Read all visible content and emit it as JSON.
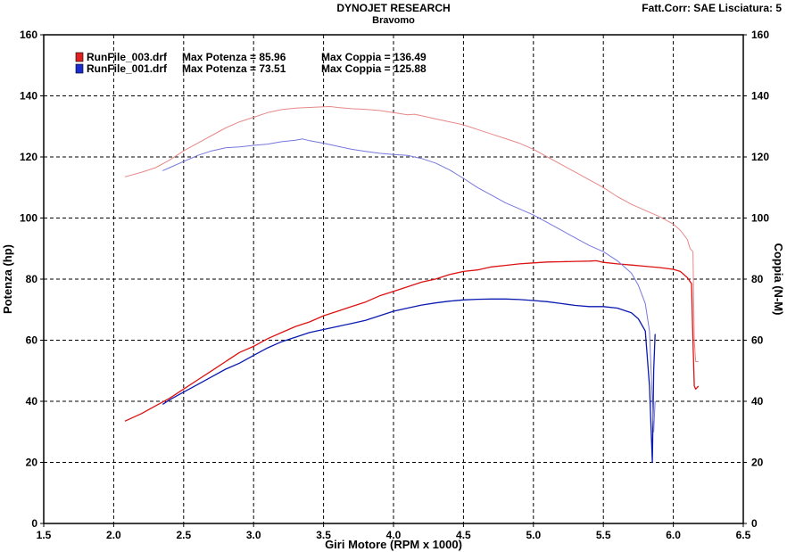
{
  "header": {
    "title": "DYNOJET RESEARCH",
    "subtitle": "Bravomo",
    "correction": "Fatt.Corr: SAE  Lisciatura: 5"
  },
  "chart_data": {
    "type": "line",
    "xlabel": "Giri Motore (RPM x 1000)",
    "ylabel_left": "Potenza (hp)",
    "ylabel_right": "Coppia (N-M)",
    "xlim": [
      1.5,
      6.5
    ],
    "ylim": [
      0,
      160
    ],
    "xticks": [
      "1.5",
      "2.0",
      "2.5",
      "3.0",
      "3.5",
      "4.0",
      "4.5",
      "5.0",
      "5.5",
      "6.0",
      "6.5"
    ],
    "yticks_left": [
      "0",
      "20",
      "40",
      "60",
      "80",
      "100",
      "120",
      "140",
      "160"
    ],
    "yticks_right": [
      "0",
      "20",
      "40",
      "60",
      "80",
      "100",
      "120",
      "140",
      "160"
    ],
    "grid": true,
    "legend_position": "top-left",
    "legend": [
      {
        "file": "RunFile_003.drf",
        "potenza": "Max Potenza = 85.96",
        "coppia": "Max Coppia = 136.49",
        "color": "#e02020"
      },
      {
        "file": "RunFile_001.drf",
        "potenza": "Max Potenza = 73.51",
        "coppia": "Max Coppia = 125.88",
        "color": "#1a2bd0"
      }
    ],
    "series": [
      {
        "name": "RunFile_003.drf",
        "measure": "Potenza",
        "color": "#dd1111",
        "width": 1.3,
        "x": [
          2.08,
          2.2,
          2.3,
          2.4,
          2.5,
          2.6,
          2.7,
          2.8,
          2.9,
          3.0,
          3.1,
          3.2,
          3.3,
          3.4,
          3.5,
          3.6,
          3.7,
          3.8,
          3.9,
          4.0,
          4.1,
          4.2,
          4.3,
          4.4,
          4.5,
          4.6,
          4.7,
          4.8,
          4.9,
          5.0,
          5.1,
          5.2,
          5.3,
          5.4,
          5.45,
          5.5,
          5.6,
          5.7,
          5.8,
          5.9,
          6.0,
          6.05,
          6.1,
          6.13,
          6.14,
          6.15,
          6.16,
          6.18
        ],
        "y": [
          33.5,
          36,
          38.5,
          41,
          44,
          47,
          50,
          53,
          56,
          58,
          60.5,
          62.5,
          64.5,
          66,
          68,
          69.5,
          71,
          72.5,
          74.5,
          76,
          77.5,
          79,
          80,
          81.5,
          82.5,
          83,
          84,
          84.5,
          85,
          85.3,
          85.6,
          85.7,
          85.8,
          85.9,
          86,
          85.5,
          85,
          84.6,
          84.2,
          83.8,
          83.2,
          82.5,
          80.5,
          78.5,
          60,
          45,
          44,
          45
        ]
      },
      {
        "name": "RunFile_003.drf",
        "measure": "Coppia",
        "color": "#e88888",
        "width": 1.0,
        "x": [
          2.08,
          2.2,
          2.3,
          2.4,
          2.5,
          2.6,
          2.7,
          2.8,
          2.9,
          3.0,
          3.1,
          3.2,
          3.3,
          3.4,
          3.5,
          3.55,
          3.6,
          3.7,
          3.8,
          3.9,
          4.0,
          4.1,
          4.15,
          4.2,
          4.3,
          4.4,
          4.5,
          4.6,
          4.7,
          4.8,
          4.9,
          5.0,
          5.1,
          5.2,
          5.3,
          5.4,
          5.5,
          5.6,
          5.7,
          5.8,
          5.9,
          6.0,
          6.05,
          6.1,
          6.12,
          6.14,
          6.15,
          6.16,
          6.18
        ],
        "y": [
          113.5,
          115,
          116.5,
          119,
          122,
          124.5,
          127,
          129.5,
          131.5,
          133,
          134.5,
          135.5,
          136,
          136.2,
          136.4,
          136.5,
          136.2,
          135.8,
          135.6,
          135.2,
          134.5,
          133.8,
          134,
          133.5,
          132.5,
          131.5,
          130.5,
          129,
          127.5,
          126,
          124.5,
          122.5,
          120,
          117.5,
          115,
          112.5,
          110,
          107,
          104.5,
          102.5,
          100.5,
          98,
          96,
          93,
          90,
          89,
          60,
          53,
          53
        ]
      },
      {
        "name": "RunFile_001.drf",
        "measure": "Potenza",
        "color": "#0a1ab0",
        "width": 1.3,
        "x": [
          2.35,
          2.4,
          2.5,
          2.6,
          2.7,
          2.8,
          2.9,
          3.0,
          3.1,
          3.2,
          3.3,
          3.4,
          3.5,
          3.6,
          3.7,
          3.8,
          3.9,
          4.0,
          4.1,
          4.2,
          4.3,
          4.4,
          4.5,
          4.6,
          4.7,
          4.8,
          4.9,
          5.0,
          5.1,
          5.2,
          5.3,
          5.4,
          5.5,
          5.6,
          5.7,
          5.75,
          5.8,
          5.83,
          5.85,
          5.86,
          5.87
        ],
        "y": [
          39,
          40.5,
          43,
          45.5,
          48,
          50.5,
          52.5,
          55,
          57.5,
          59.5,
          61,
          62.5,
          63.5,
          64.5,
          65.5,
          66.5,
          68,
          69.5,
          70.5,
          71.5,
          72.2,
          72.8,
          73.2,
          73.4,
          73.5,
          73.5,
          73.3,
          73,
          72.6,
          72,
          71.4,
          71,
          71,
          70.5,
          69,
          67,
          63,
          45,
          20,
          50,
          62
        ]
      },
      {
        "name": "RunFile_001.drf",
        "measure": "Coppia",
        "color": "#7777dd",
        "width": 1.0,
        "x": [
          2.35,
          2.4,
          2.5,
          2.6,
          2.7,
          2.8,
          2.9,
          3.0,
          3.1,
          3.2,
          3.3,
          3.35,
          3.4,
          3.5,
          3.6,
          3.7,
          3.8,
          3.9,
          4.0,
          4.1,
          4.2,
          4.3,
          4.4,
          4.5,
          4.6,
          4.7,
          4.8,
          4.9,
          5.0,
          5.1,
          5.2,
          5.3,
          5.4,
          5.5,
          5.6,
          5.7,
          5.75,
          5.8,
          5.83,
          5.85,
          5.86,
          5.87
        ],
        "y": [
          115.5,
          116.5,
          118.5,
          120.5,
          122,
          123,
          123.3,
          123.8,
          124.2,
          125,
          125.5,
          125.9,
          125.3,
          124.5,
          123.5,
          122.5,
          121.8,
          121.2,
          120.8,
          120.5,
          119.5,
          118,
          115.8,
          113,
          110,
          107.5,
          105,
          103,
          101,
          98.5,
          96,
          93.5,
          91,
          89,
          86,
          82,
          78,
          72,
          63,
          40,
          30,
          40
        ]
      }
    ]
  }
}
